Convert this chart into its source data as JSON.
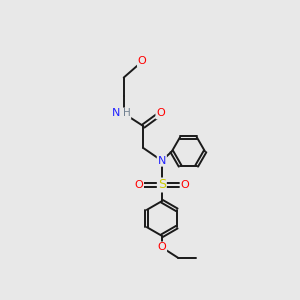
{
  "bg_color": "#e8e8e8",
  "bond_color": "#1a1a1a",
  "N_color": "#2222ff",
  "O_color": "#ff0000",
  "S_color": "#cccc00",
  "H_color": "#708090",
  "lw": 1.4,
  "ring_lw": 1.4,
  "fontsize": 7.5,
  "figsize": [
    3.0,
    3.0
  ],
  "dpi": 100,
  "xlim": [
    0,
    10
  ],
  "ylim": [
    0,
    10
  ]
}
